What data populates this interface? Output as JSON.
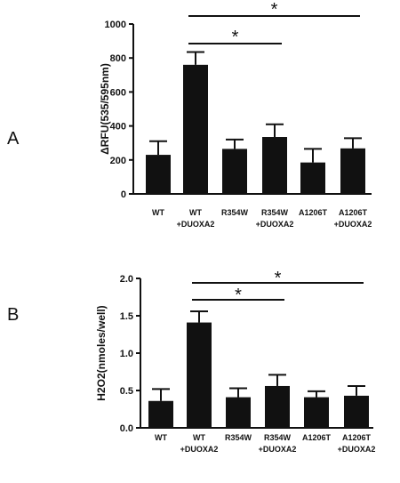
{
  "chart_data": [
    {
      "type": "bar",
      "panel_label": "A",
      "ylabel": "ΔRFU(535/595nm)",
      "ylim": [
        0,
        1000
      ],
      "yticks": [
        0,
        200,
        400,
        600,
        800,
        1000
      ],
      "categories": [
        [
          "WT"
        ],
        [
          "WT",
          "+DUOXA2"
        ],
        [
          "R354W"
        ],
        [
          "R354W",
          "+DUOXA2"
        ],
        [
          "A1206T"
        ],
        [
          "A1206T",
          "+DUOXA2"
        ]
      ],
      "values": [
        230,
        760,
        265,
        335,
        185,
        268
      ],
      "errors": [
        80,
        75,
        55,
        75,
        80,
        60
      ],
      "significance": [
        {
          "from": 1,
          "to": 3,
          "label": "*"
        },
        {
          "from": 1,
          "to": 5,
          "label": "*"
        }
      ]
    },
    {
      "type": "bar",
      "panel_label": "B",
      "ylabel": "H2O2(nmoles/well)",
      "ylim": [
        0,
        2.0
      ],
      "yticks": [
        "0.0",
        "0.5",
        "1.0",
        "1.5",
        "2.0"
      ],
      "categories": [
        [
          "WT"
        ],
        [
          "WT",
          "+DUOXA2"
        ],
        [
          "R354W"
        ],
        [
          "R354W",
          "+DUOXA2"
        ],
        [
          "A1206T"
        ],
        [
          "A1206T",
          "+DUOXA2"
        ]
      ],
      "values": [
        0.36,
        1.41,
        0.41,
        0.56,
        0.41,
        0.43
      ],
      "errors": [
        0.16,
        0.15,
        0.12,
        0.15,
        0.08,
        0.13
      ],
      "significance": [
        {
          "from": 1,
          "to": 3,
          "label": "*"
        },
        {
          "from": 1,
          "to": 5,
          "label": "*"
        }
      ]
    }
  ]
}
